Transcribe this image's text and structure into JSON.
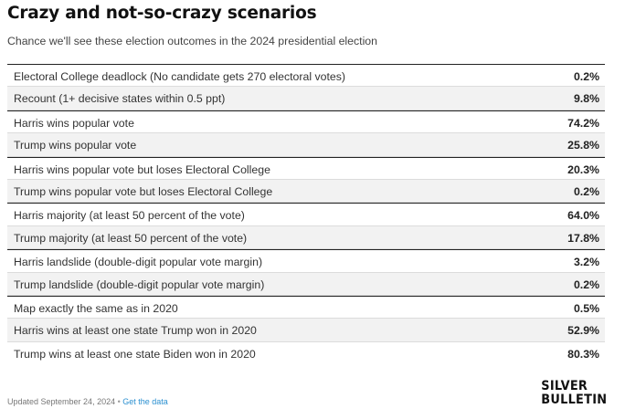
{
  "title": "Crazy and not-so-crazy scenarios",
  "subtitle": "Chance we'll see these election outcomes in the 2024 presidential election",
  "rows": [
    {
      "label": "Electoral College deadlock (No candidate gets 270 electoral votes)",
      "value": "0.2%"
    },
    {
      "label": "Recount (1+ decisive states within 0.5 ppt)",
      "value": "9.8%"
    },
    {
      "label": "Harris wins popular vote",
      "value": "74.2%"
    },
    {
      "label": "Trump wins popular vote",
      "value": "25.8%"
    },
    {
      "label": "Harris wins popular vote but loses Electoral College",
      "value": "20.3%"
    },
    {
      "label": "Trump wins popular vote but loses Electoral College",
      "value": "0.2%"
    },
    {
      "label": "Harris majority (at least 50 percent of the vote)",
      "value": "64.0%"
    },
    {
      "label": "Trump majority (at least 50 percent of the vote)",
      "value": "17.8%"
    },
    {
      "label": "Harris landslide (double-digit popular vote margin)",
      "value": "3.2%"
    },
    {
      "label": "Trump landslide (double-digit popular vote margin)",
      "value": "0.2%"
    },
    {
      "label": "Map exactly the same as in 2020",
      "value": "0.5%"
    },
    {
      "label": "Harris wins at least one state Trump won in 2020",
      "value": "52.9%"
    },
    {
      "label": "Trump wins at least one state Biden won in 2020",
      "value": "80.3%"
    }
  ],
  "footer": {
    "updated": "Updated September 24, 2024",
    "separator": "•",
    "link": "Get the data"
  },
  "brand": {
    "line1": "SILVER",
    "line2": "BULLETIN"
  }
}
